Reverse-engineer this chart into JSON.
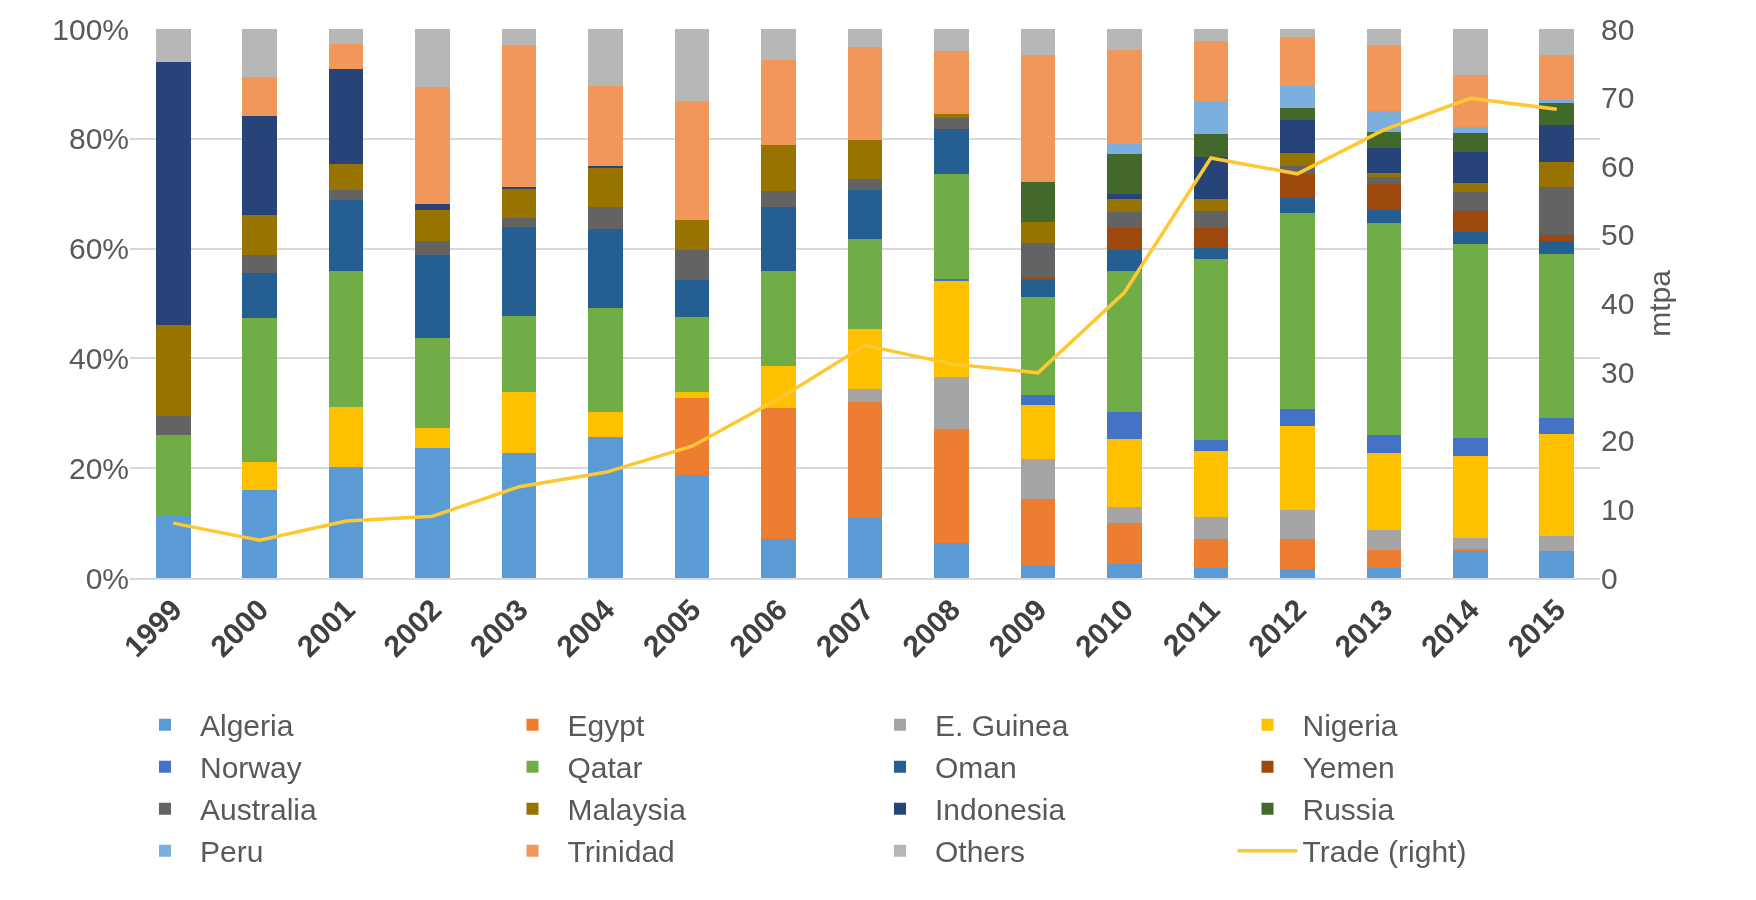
{
  "chart_data": {
    "type": "bar",
    "stacked": true,
    "categories": [
      "1999",
      "2000",
      "2001",
      "2002",
      "2003",
      "2004",
      "2005",
      "2006",
      "2007",
      "2008",
      "2009",
      "2010",
      "2011",
      "2012",
      "2013",
      "2014",
      "2015"
    ],
    "series": [
      {
        "name": "Algeria",
        "color": "#5b9bd5",
        "values": [
          11.5,
          16,
          20.3,
          23.7,
          22.8,
          25.6,
          18.8,
          7.1,
          10.9,
          6.3,
          2.2,
          2.5,
          1.9,
          1.7,
          1.9,
          4.9,
          4.9
        ]
      },
      {
        "name": "Egypt",
        "color": "#ed7d31",
        "values": [
          0,
          0,
          0,
          0,
          0,
          0,
          13.9,
          23.9,
          21.2,
          20.8,
          12.1,
          7.5,
          5.2,
          5.4,
          3.2,
          0.4,
          0
        ]
      },
      {
        "name": "E. Guinea",
        "color": "#a5a5a5",
        "values": [
          0,
          0,
          0,
          0,
          0,
          0,
          0,
          0,
          2.4,
          9.6,
          7.4,
          2.9,
          4,
          5.3,
          3.6,
          2,
          2.8
        ]
      },
      {
        "name": "Nigeria",
        "color": "#ffc000",
        "values": [
          0,
          5.1,
          10.8,
          3.6,
          11.1,
          4.7,
          1.2,
          7.7,
          10.8,
          17.4,
          9.8,
          12.4,
          12.1,
          15.3,
          14,
          14.9,
          18.6
        ]
      },
      {
        "name": "Norway",
        "color": "#4472c4",
        "values": [
          0,
          0,
          0,
          0,
          0,
          0,
          0,
          0,
          0,
          0.4,
          1.8,
          4.9,
          1.9,
          3.1,
          3.4,
          3.3,
          2.9
        ]
      },
      {
        "name": "Qatar",
        "color": "#70ad47",
        "values": [
          14.5,
          26.2,
          24.9,
          16.4,
          13.9,
          18.9,
          13.6,
          17.2,
          16.4,
          19,
          17.9,
          25.7,
          33,
          35.6,
          38.6,
          35.4,
          29.8
        ]
      },
      {
        "name": "Oman",
        "color": "#255e91",
        "values": [
          0,
          8.2,
          12.8,
          15.2,
          16.1,
          14.3,
          6.8,
          11.6,
          8.9,
          8.3,
          3,
          3.9,
          2.1,
          2.8,
          2.3,
          2.2,
          2.3
        ]
      },
      {
        "name": "Yemen",
        "color": "#9e480e",
        "values": [
          0,
          0,
          0,
          0,
          0,
          0,
          0,
          0,
          0,
          0,
          0.4,
          3.9,
          3.6,
          4.3,
          4.8,
          3.8,
          1.2
        ]
      },
      {
        "name": "Australia",
        "color": "#636363",
        "values": [
          3.5,
          3.3,
          1.9,
          2.5,
          1.6,
          4,
          5.4,
          3,
          2.1,
          1.9,
          6.4,
          3,
          3.1,
          1.5,
          1.2,
          3.4,
          8.8
        ]
      },
      {
        "name": "Malaysia",
        "color": "#997300",
        "values": [
          16.5,
          7.3,
          4.8,
          5.7,
          5.4,
          7.2,
          5.5,
          8.3,
          7,
          0.8,
          3.9,
          2.3,
          2.2,
          2.5,
          0.7,
          1.6,
          4.5
        ]
      },
      {
        "name": "Indonesia",
        "color": "#264478",
        "values": [
          48,
          18.1,
          17.2,
          1.1,
          0.3,
          0.3,
          0,
          0,
          0,
          0,
          0,
          1,
          7.6,
          6,
          4.6,
          5.7,
          6.7
        ]
      },
      {
        "name": "Russia",
        "color": "#43682b",
        "values": [
          0,
          0,
          0,
          0,
          0,
          0,
          0,
          0,
          0,
          0,
          7.3,
          7.2,
          4.1,
          2.2,
          3,
          3.5,
          4.2
        ]
      },
      {
        "name": "Peru",
        "color": "#7cafdd",
        "values": [
          0,
          0,
          0,
          0,
          0,
          0,
          0,
          0,
          0,
          0,
          0,
          1.8,
          6.1,
          4,
          3.7,
          1,
          0.3
        ]
      },
      {
        "name": "Trinidad",
        "color": "#f1975a",
        "values": [
          0,
          7.1,
          4.5,
          21.3,
          25.8,
          14.7,
          21.6,
          15.5,
          17.1,
          11.5,
          23.1,
          17.1,
          11,
          8.8,
          12,
          9.6,
          8.2
        ]
      },
      {
        "name": "Others",
        "color": "#b7b7b7",
        "values": [
          6,
          8.7,
          2.8,
          10.5,
          3,
          10.3,
          13.2,
          5.7,
          3.2,
          4,
          4.7,
          3.9,
          2.1,
          1.5,
          3,
          8.3,
          4.8
        ]
      },
      {
        "name": "Trade (right)",
        "type": "line",
        "axis": "y2",
        "color": "#ffc832",
        "values": [
          8,
          5.5,
          8.3,
          9,
          13.3,
          15.4,
          19.2,
          26.1,
          33.9,
          31.2,
          29.9,
          41.6,
          61.2,
          58.9,
          65.3,
          69.9,
          68.3
        ]
      }
    ],
    "ylim": [
      0,
      100
    ],
    "yticks": [
      {
        "value": 0,
        "label": "0%"
      },
      {
        "value": 20,
        "label": "20%"
      },
      {
        "value": 40,
        "label": "40%"
      },
      {
        "value": 60,
        "label": "60%"
      },
      {
        "value": 80,
        "label": "80%"
      },
      {
        "value": 100,
        "label": "100%"
      }
    ],
    "y2lim": [
      0,
      80
    ],
    "y2ticks": [
      0,
      10,
      20,
      30,
      40,
      50,
      60,
      70,
      80
    ],
    "y2label": "mtpa",
    "grid": "y",
    "legend": "bottom",
    "marker": "none"
  }
}
